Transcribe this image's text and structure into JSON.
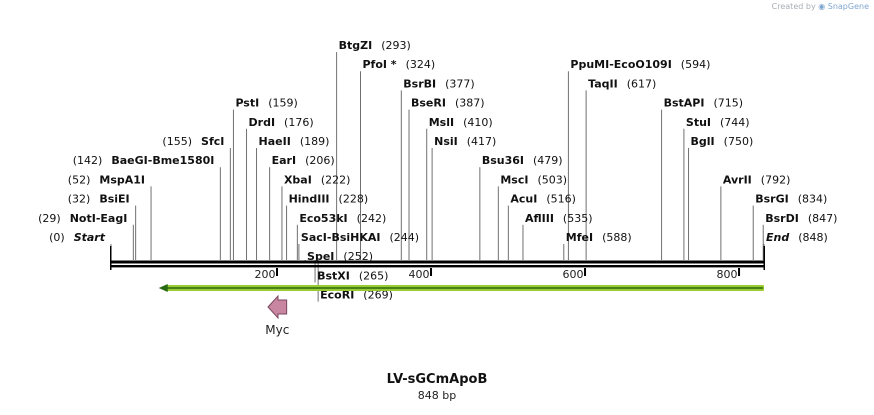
{
  "watermark": {
    "prefix": "Created by",
    "brand": "SnapGene"
  },
  "map": {
    "title": "LV-sGCmApoB",
    "length_label": "848 bp",
    "length_bp": 848
  },
  "ticks": [
    {
      "bp": 200,
      "label": "200"
    },
    {
      "bp": 400,
      "label": "400"
    },
    {
      "bp": 600,
      "label": "600"
    },
    {
      "bp": 800,
      "label": "800"
    }
  ],
  "sites": [
    {
      "name": "Start",
      "pos": "(0)",
      "bp": 0,
      "style": "italic",
      "side": "left",
      "row": 0
    },
    {
      "name": "NotI",
      "alt": "EagI",
      "pos": "(29)",
      "bp": 29,
      "side": "left",
      "row": 1
    },
    {
      "name": "BsiEI",
      "pos": "(32)",
      "bp": 32,
      "side": "left",
      "row": 2
    },
    {
      "name": "MspA1I",
      "pos": "(52)",
      "bp": 52,
      "side": "left",
      "row": 3
    },
    {
      "name": "BaeGI",
      "alt": "Bme1580I",
      "pos": "(142)",
      "bp": 142,
      "side": "left",
      "row": 4
    },
    {
      "name": "SfcI",
      "pos": "(155)",
      "bp": 155,
      "side": "left",
      "row": 5
    },
    {
      "name": "PstI",
      "pos": "(159)",
      "bp": 159,
      "side": "right",
      "row": 7
    },
    {
      "name": "DrdI",
      "pos": "(176)",
      "bp": 176,
      "side": "right",
      "row": 6
    },
    {
      "name": "HaeII",
      "pos": "(189)",
      "bp": 189,
      "side": "right",
      "row": 5
    },
    {
      "name": "EarI",
      "pos": "(206)",
      "bp": 206,
      "side": "right",
      "row": 4
    },
    {
      "name": "XbaI",
      "pos": "(222)",
      "bp": 222,
      "side": "right",
      "row": 3
    },
    {
      "name": "HindIII",
      "pos": "(228)",
      "bp": 228,
      "side": "right",
      "row": 2
    },
    {
      "name": "Eco53kI",
      "pos": "(242)",
      "bp": 242,
      "side": "right",
      "row": 1
    },
    {
      "name": "SacI",
      "alt": "BsiHKAI",
      "pos": "(244)",
      "bp": 244,
      "side": "right",
      "row": 0
    },
    {
      "name": "SpeI",
      "pos": "(252)",
      "bp": 252,
      "side": "right",
      "row": -1
    },
    {
      "name": "BstXI",
      "pos": "(265)",
      "bp": 265,
      "side": "right",
      "row": -2
    },
    {
      "name": "EcoRI",
      "pos": "(269)",
      "bp": 269,
      "side": "right",
      "row": -3
    },
    {
      "name": "BtgZI",
      "pos": "(293)",
      "bp": 293,
      "side": "right",
      "row": 10
    },
    {
      "name": "PfoI *",
      "pos": "(324)",
      "bp": 324,
      "side": "right",
      "row": 9
    },
    {
      "name": "BsrBI",
      "pos": "(377)",
      "bp": 377,
      "side": "right",
      "row": 8
    },
    {
      "name": "BseRI",
      "pos": "(387)",
      "bp": 387,
      "side": "right",
      "row": 7
    },
    {
      "name": "MslI",
      "pos": "(410)",
      "bp": 410,
      "side": "right",
      "row": 6
    },
    {
      "name": "NsiI",
      "pos": "(417)",
      "bp": 417,
      "side": "right",
      "row": 5
    },
    {
      "name": "Bsu36I",
      "pos": "(479)",
      "bp": 479,
      "side": "right",
      "row": 4
    },
    {
      "name": "MscI",
      "pos": "(503)",
      "bp": 503,
      "side": "right",
      "row": 3
    },
    {
      "name": "AcuI",
      "pos": "(516)",
      "bp": 516,
      "side": "right",
      "row": 2
    },
    {
      "name": "AflIII",
      "pos": "(535)",
      "bp": 535,
      "side": "right",
      "row": 1
    },
    {
      "name": "MfeI",
      "pos": "(588)",
      "bp": 588,
      "side": "right",
      "row": 0
    },
    {
      "name": "PpuMI",
      "alt": "EcoO109I",
      "pos": "(594)",
      "bp": 594,
      "side": "right",
      "row": 9
    },
    {
      "name": "TaqII",
      "pos": "(617)",
      "bp": 617,
      "side": "right",
      "row": 8
    },
    {
      "name": "BstAPI",
      "pos": "(715)",
      "bp": 715,
      "side": "right",
      "row": 7
    },
    {
      "name": "StuI",
      "pos": "(744)",
      "bp": 744,
      "side": "right",
      "row": 6
    },
    {
      "name": "BglI",
      "pos": "(750)",
      "bp": 750,
      "side": "right",
      "row": 5
    },
    {
      "name": "AvrII",
      "pos": "(792)",
      "bp": 792,
      "side": "right",
      "row": 3
    },
    {
      "name": "BsrGI",
      "pos": "(834)",
      "bp": 834,
      "side": "right",
      "row": 2
    },
    {
      "name": "BsrDI",
      "pos": "(847)",
      "bp": 847,
      "side": "right",
      "row": 1
    },
    {
      "name": "End",
      "pos": "(848)",
      "bp": 848,
      "style": "italic",
      "side": "right",
      "row": 0
    }
  ],
  "features": [
    {
      "name": "",
      "type": "arrow-bar",
      "start_bp": 62,
      "end_bp": 848,
      "color": "#99cc33",
      "direction": "left"
    },
    {
      "name": "Myc",
      "type": "arrow",
      "start_bp": 200,
      "end_bp": 232,
      "color": "#c986a0",
      "direction": "left"
    }
  ],
  "colors": {
    "backbone": "#000000",
    "site_line": "#707070",
    "text": "#111111"
  }
}
